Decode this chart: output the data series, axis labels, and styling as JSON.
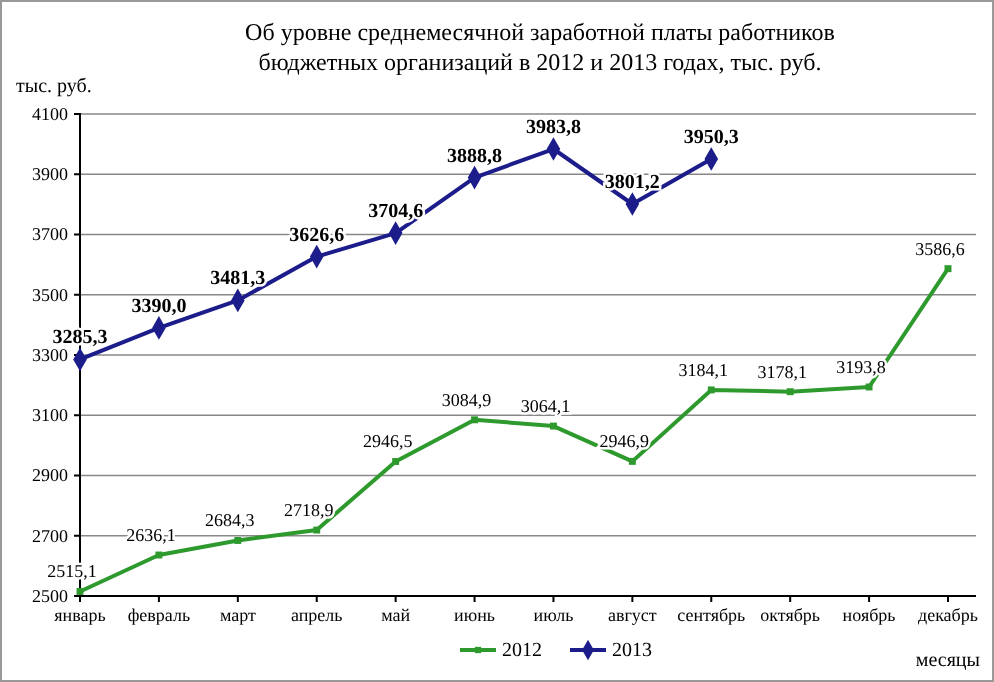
{
  "chart_data": {
    "type": "line",
    "title": "Об уровне среднемесячной заработной платы  работников\nбюджетных организаций в 2012 и 2013 годах, тыс. руб.",
    "ylabel": "тыс. руб.",
    "xlabel": "месяцы",
    "categories": [
      "январь",
      "февраль",
      "март",
      "апрель",
      "май",
      "июнь",
      "июль",
      "август",
      "сентябрь",
      "октябрь",
      "ноябрь",
      "декабрь"
    ],
    "series": [
      {
        "name": "2012",
        "color": "#2e9a2e",
        "marker": "square",
        "values": [
          2515.1,
          2636.1,
          2684.3,
          2718.9,
          2946.5,
          3084.9,
          3064.1,
          2946.9,
          3184.1,
          3178.1,
          3193.8,
          3586.6
        ],
        "value_labels": [
          "2515,1",
          "2636,1",
          "2684,3",
          "2718,9",
          "2946,5",
          "3084,9",
          "3064,1",
          "2946,9",
          "3184,1",
          "3178,1",
          "3193,8",
          "3586,6"
        ]
      },
      {
        "name": "2013",
        "color": "#1c1c8a",
        "marker": "diamond",
        "values": [
          3285.3,
          3390.0,
          3481.3,
          3626.6,
          3704.6,
          3888.8,
          3983.8,
          3801.2,
          3950.3,
          null,
          null,
          null
        ],
        "value_labels": [
          "3285,3",
          "3390,0",
          "3481,3",
          "3626,6",
          "3704,6",
          "3888,8",
          "3983,8",
          "3801,2",
          "3950,3",
          null,
          null,
          null
        ]
      }
    ],
    "ylim": [
      2500,
      4100
    ],
    "yticks": [
      2500,
      2700,
      2900,
      3100,
      3300,
      3500,
      3700,
      3900,
      4100
    ],
    "grid": "y",
    "legend": "bottom"
  }
}
